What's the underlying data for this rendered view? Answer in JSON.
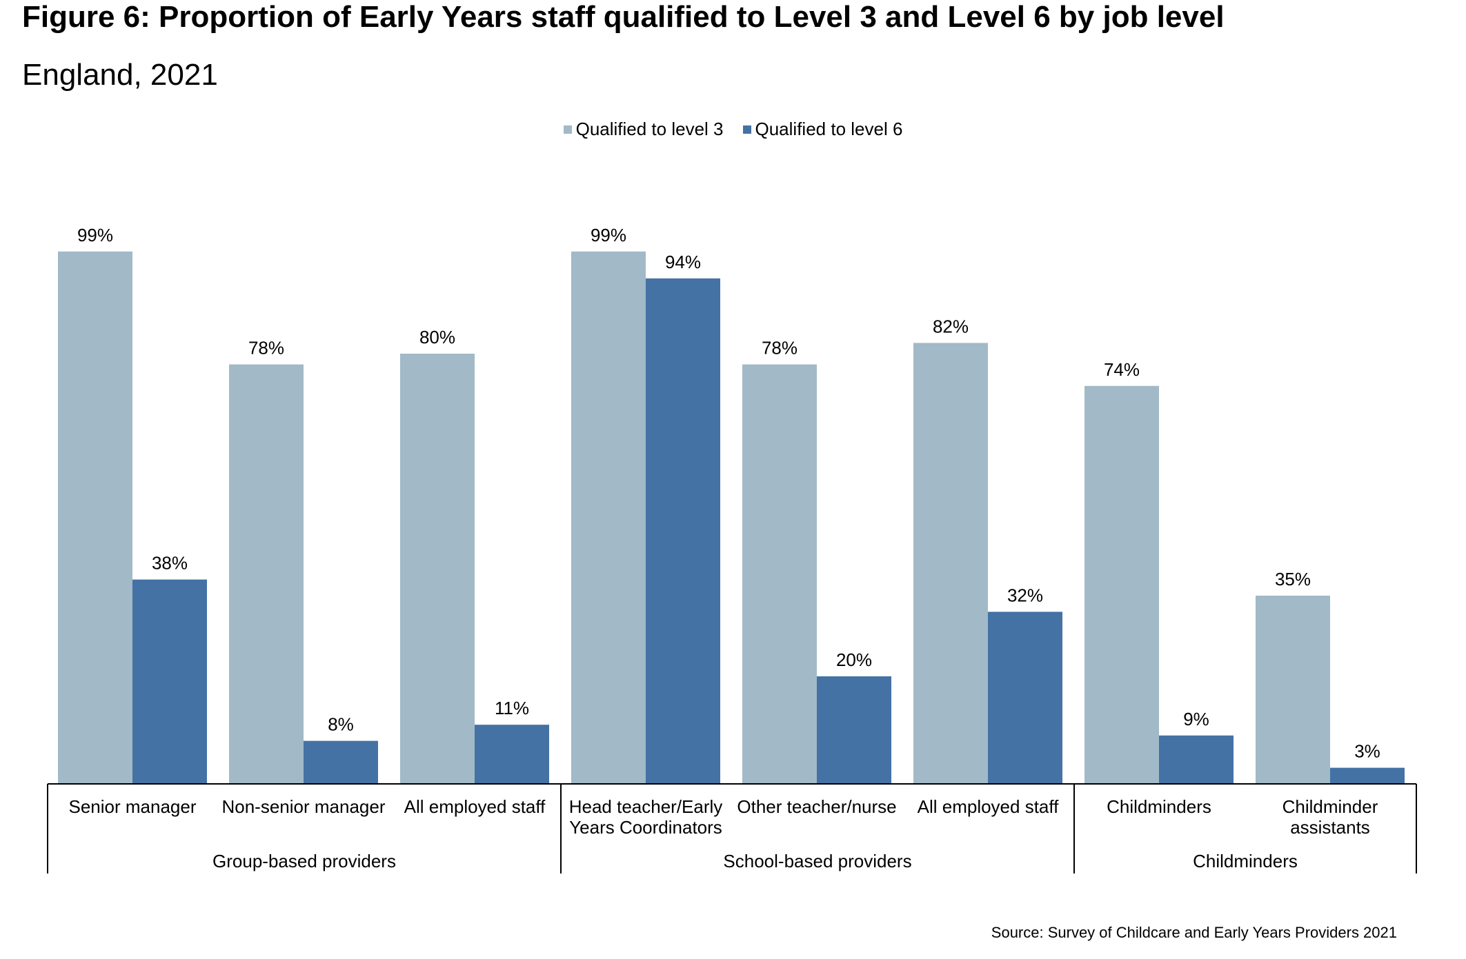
{
  "chart_data": {
    "type": "bar",
    "title": "Figure 6: Proportion of Early Years staff qualified to Level 3 and Level 6 by job level",
    "subtitle": "England, 2021",
    "categories": [
      "Senior manager",
      "Non-senior manager",
      "All employed staff",
      "Head teacher/Early Years  Coordinators",
      "Other teacher/nurse",
      "All employed staff",
      "Childminders",
      "Childminder assistants"
    ],
    "category_lines": [
      [
        "Senior manager"
      ],
      [
        "Non-senior manager"
      ],
      [
        "All employed staff"
      ],
      [
        "Head teacher/Early",
        "Years  Coordinators"
      ],
      [
        "Other teacher/nurse"
      ],
      [
        "All employed staff"
      ],
      [
        "Childminders"
      ],
      [
        "Childminder",
        "assistants"
      ]
    ],
    "groups": [
      {
        "label": "Group-based providers",
        "count": 3
      },
      {
        "label": "School-based providers",
        "count": 3
      },
      {
        "label": "Childminders",
        "count": 2
      }
    ],
    "series": [
      {
        "name": "Qualified to level 3",
        "color": "#A2B9C7",
        "values": [
          99,
          78,
          80,
          99,
          78,
          82,
          74,
          35
        ]
      },
      {
        "name": "Qualified to level 6",
        "color": "#4472A4",
        "values": [
          38,
          8,
          11,
          94,
          20,
          32,
          9,
          3
        ]
      }
    ],
    "value_suffix": "%",
    "ylim": [
      0,
      100
    ],
    "grid": false,
    "legend_position": "top-center",
    "source": "Source: Survey of Childcare and Early Years Providers 2021"
  }
}
